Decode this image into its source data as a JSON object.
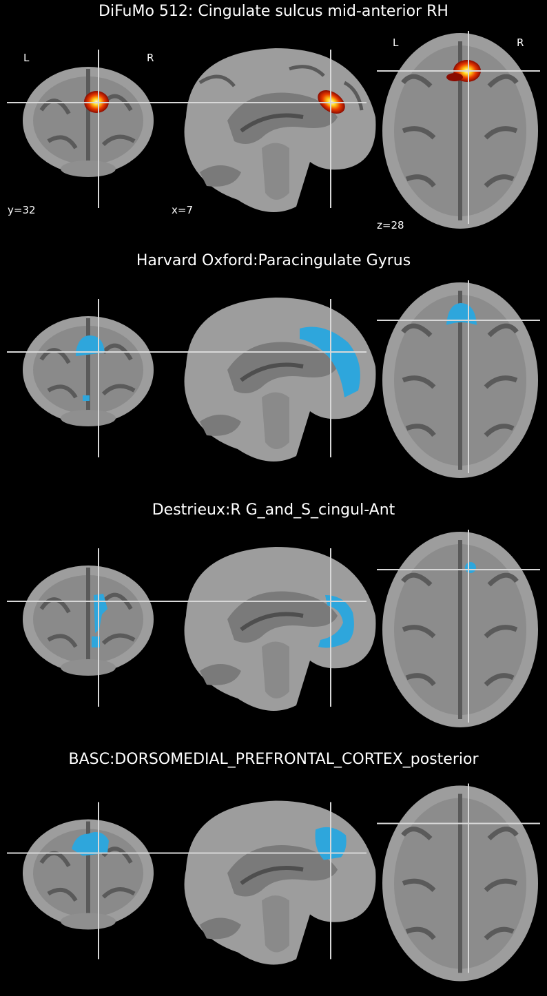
{
  "colors": {
    "background": "#000000",
    "brain_light": "#9d9d9d",
    "brain_mid": "#7a7a7a",
    "brain_dark": "#4e4e4e",
    "crosshair": "#d8d8d8",
    "roi_blue": "#2ea6dc",
    "heat_outer": "#8a0a00",
    "heat_mid": "#e83a00",
    "heat_inner": "#ffd21a",
    "heat_core": "#fffbe0"
  },
  "icons": {
    "coronal": "brain-coronal-slice-icon",
    "sagittal": "brain-sagittal-slice-icon",
    "axial": "brain-axial-slice-icon"
  },
  "panels": [
    {
      "title": "DiFuMo 512: Cingulate sulcus mid-anterior RH",
      "overlay": "heatmap",
      "labels": {
        "coronal_left": "L",
        "coronal_right": "R",
        "axial_left": "L",
        "axial_right": "R",
        "coronal_coord": "y=32",
        "sagittal_coord": "x=7",
        "axial_coord": "z=28"
      }
    },
    {
      "title": "Harvard Oxford:Paracingulate Gyrus",
      "overlay": "atlas-region"
    },
    {
      "title": "Destrieux:R G_and_S_cingul-Ant",
      "overlay": "atlas-region"
    },
    {
      "title": "BASC:DORSOMEDIAL_PREFRONTAL_CORTEX_posterior",
      "overlay": "atlas-region"
    }
  ]
}
